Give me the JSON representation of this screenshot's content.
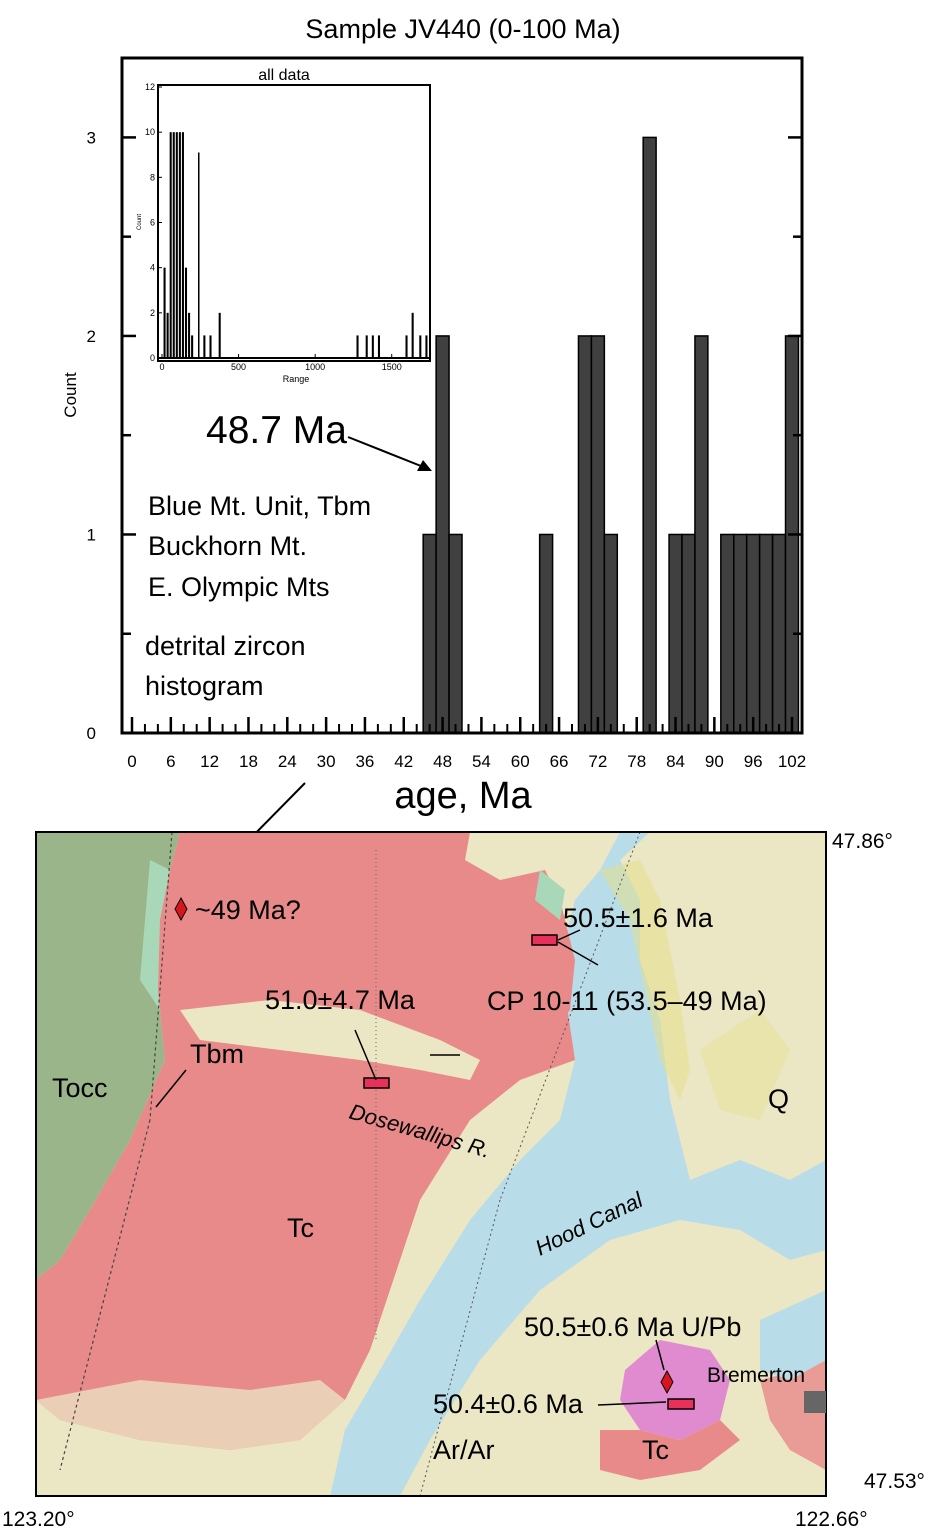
{
  "chart_data": [
    {
      "type": "bar",
      "title": "Sample JV440 (0-100 Ma)",
      "xlabel": "age, Ma",
      "ylabel": "Count",
      "xlim": [
        0,
        102
      ],
      "ylim": [
        0,
        3.4
      ],
      "x_ticks": [
        "0",
        "6",
        "12",
        "18",
        "24",
        "30",
        "36",
        "42",
        "48",
        "54",
        "60",
        "66",
        "72",
        "78",
        "84",
        "90",
        "96",
        "102"
      ],
      "y_ticks": [
        "0",
        "1",
        "2",
        "3"
      ],
      "bin_width": 2,
      "bins": [
        {
          "x": 46,
          "count": 1
        },
        {
          "x": 48,
          "count": 2
        },
        {
          "x": 50,
          "count": 1
        },
        {
          "x": 64,
          "count": 1
        },
        {
          "x": 70,
          "count": 2
        },
        {
          "x": 72,
          "count": 2
        },
        {
          "x": 74,
          "count": 1
        },
        {
          "x": 80,
          "count": 3
        },
        {
          "x": 84,
          "count": 1
        },
        {
          "x": 86,
          "count": 1
        },
        {
          "x": 88,
          "count": 2
        },
        {
          "x": 92,
          "count": 1
        },
        {
          "x": 94,
          "count": 1
        },
        {
          "x": 96,
          "count": 1
        },
        {
          "x": 98,
          "count": 1
        },
        {
          "x": 100,
          "count": 1
        },
        {
          "x": 102,
          "count": 2
        }
      ],
      "annotations": {
        "age_callout": "48.7 Ma",
        "unit_lines": [
          "Blue Mt. Unit, Tbm",
          "Buckhorn Mt.",
          "E. Olympic Mts"
        ],
        "histogram_lines": [
          "detrital zircon",
          "histogram"
        ]
      }
    },
    {
      "type": "bar",
      "title": "all data",
      "xlabel": "Range",
      "ylabel": "Count",
      "xlim": [
        0,
        1750
      ],
      "ylim": [
        0,
        12
      ],
      "x_ticks": [
        "0",
        "500",
        "1000",
        "1500"
      ],
      "y_ticks": [
        "0",
        "2",
        "4",
        "6",
        "8",
        "10",
        "12"
      ],
      "bins": [
        {
          "x": 20,
          "count": 4
        },
        {
          "x": 40,
          "count": 2
        },
        {
          "x": 60,
          "count": 10
        },
        {
          "x": 80,
          "count": 10
        },
        {
          "x": 100,
          "count": 10
        },
        {
          "x": 120,
          "count": 10
        },
        {
          "x": 140,
          "count": 10
        },
        {
          "x": 160,
          "count": 4
        },
        {
          "x": 180,
          "count": 2
        },
        {
          "x": 200,
          "count": 1
        },
        {
          "x": 280,
          "count": 1
        },
        {
          "x": 320,
          "count": 1
        },
        {
          "x": 380,
          "count": 2
        },
        {
          "x": 1280,
          "count": 1
        },
        {
          "x": 1340,
          "count": 1
        },
        {
          "x": 1380,
          "count": 1
        },
        {
          "x": 1420,
          "count": 1
        },
        {
          "x": 1600,
          "count": 1
        },
        {
          "x": 1640,
          "count": 2
        },
        {
          "x": 1690,
          "count": 1
        },
        {
          "x": 1730,
          "count": 1
        }
      ],
      "marker_x": 240
    }
  ],
  "map": {
    "coords": {
      "ne": "47.86°",
      "se": "47.53°",
      "sw": "123.20°",
      "se_lon": "122.66°"
    },
    "labels": {
      "l1": "~49 Ma?",
      "l2": "50.5±1.6 Ma",
      "l3": "51.0±4.7 Ma",
      "l4": "CP 10-11 (53.5–49 Ma)",
      "l5": "Tbm",
      "l6": "Tocc",
      "l7": "Q",
      "l8": "Dosewallips R.",
      "l9": "Tc",
      "l10": "Hood Canal",
      "l11": "50.5±0.6 Ma U/Pb",
      "l12": "Bremerton",
      "l13": "50.4±0.6 Ma",
      "l14": "Ar/Ar",
      "l15": "Tc"
    },
    "colors": {
      "tertiary_volcanics": "#e88a8a",
      "olympic_core": "#9bb58a",
      "quaternary": "#ebe6c4",
      "water": "#b9dde8",
      "intrusion": "#e08bd0",
      "sample_box": "#e8315a",
      "marker": "#d7151b"
    }
  }
}
